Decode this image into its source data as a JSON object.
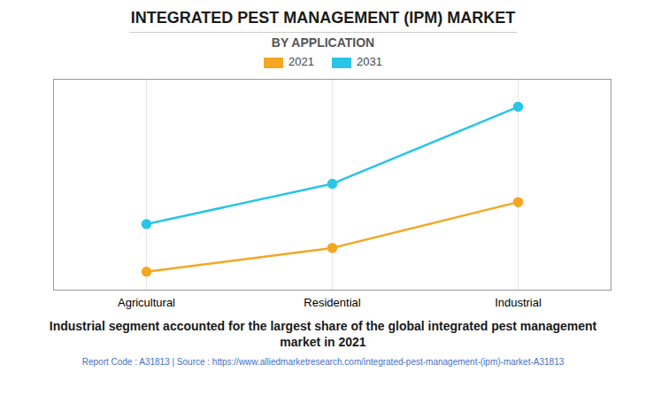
{
  "chart_data": {
    "type": "line",
    "title": "INTEGRATED PEST MANAGEMENT (IPM) MARKET",
    "subtitle": "BY APPLICATION",
    "categories": [
      "Agricultural",
      "Residential",
      "Industrial"
    ],
    "series": [
      {
        "name": "2021",
        "color": "#F5A623",
        "marker": "circle",
        "values": [
          1.0,
          2.3,
          4.8
        ]
      },
      {
        "name": "2031",
        "color": "#29C4E8",
        "marker": "circle",
        "values": [
          3.6,
          5.8,
          10.0
        ]
      }
    ],
    "ylim": [
      0,
      11.5
    ],
    "yticks": [],
    "grid": true,
    "tick_labels": "x",
    "legend": "top",
    "annotation": "Industrial segment accounted for the largest share of the global integrated pest management\nmarket in 2021",
    "source": "Report Code : A31813  |  Source : https://www.alliedmarketresearch.com/integrated-pest-management-(ipm)-market-A31813"
  }
}
